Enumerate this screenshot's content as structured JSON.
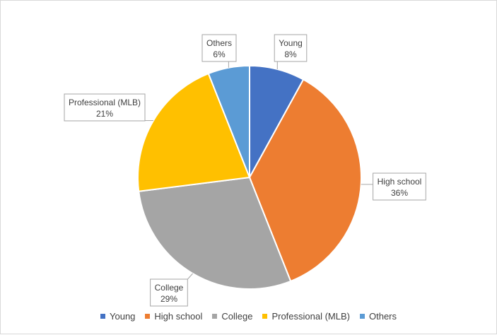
{
  "chart_data": {
    "type": "pie",
    "categories": [
      "Young",
      "High school",
      "College",
      "Professional (MLB)",
      "Others"
    ],
    "values": [
      8,
      36,
      29,
      21,
      6
    ],
    "labels": [
      "8%",
      "36%",
      "29%",
      "21%",
      "6%"
    ],
    "colors": [
      "#4472c4",
      "#ed7d31",
      "#a5a5a5",
      "#ffc000",
      "#5b9bd5"
    ],
    "title": "",
    "legend": "bottom"
  }
}
